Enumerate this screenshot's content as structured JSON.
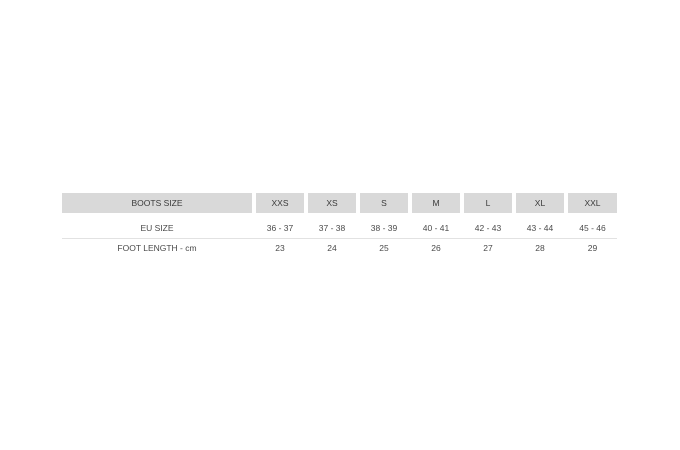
{
  "table": {
    "header": [
      "BOOTS SIZE",
      "XXS",
      "XS",
      "S",
      "M",
      "L",
      "XL",
      "XXL"
    ],
    "rows": [
      [
        "EU SIZE",
        "36 - 37",
        "37 - 38",
        "38 - 39",
        "40 - 41",
        "42 - 43",
        "43 - 44",
        "45 - 46"
      ],
      [
        "FOOT LENGTH - cm",
        23,
        24,
        25,
        26,
        27,
        28,
        29
      ]
    ]
  }
}
